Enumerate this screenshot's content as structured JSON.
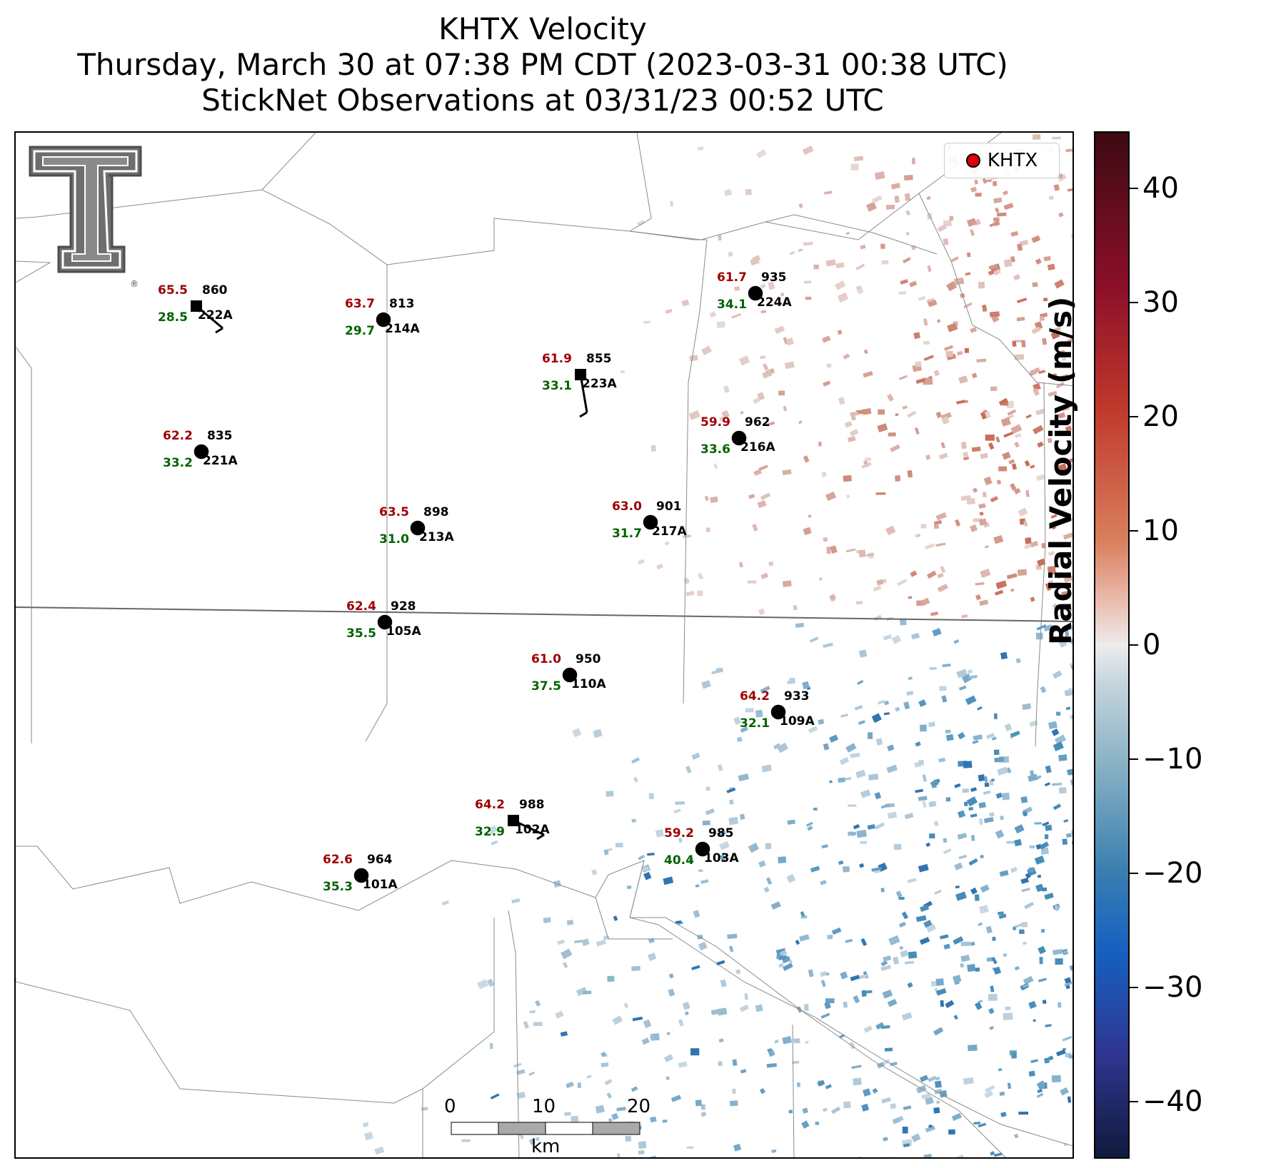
{
  "title": {
    "line1": "KHTX Velocity",
    "line2": "Thursday, March 30 at 07:38 PM CDT (2023-03-31 00:38 UTC)",
    "line3": "StickNet Observations at 03/31/23 00:52 UTC"
  },
  "legend": {
    "label": "KHTX",
    "marker_color": "#e0000a"
  },
  "logo": {
    "name": "texas-tech-double-t-logo",
    "registered_mark": "®"
  },
  "colorbar": {
    "label": "Radial Velocity (m/s)",
    "range": [
      -45,
      45
    ],
    "ticks": [
      "40",
      "30",
      "20",
      "10",
      "0",
      "−10",
      "−20",
      "−30",
      "−40"
    ],
    "tick_values": [
      40,
      30,
      20,
      10,
      0,
      -10,
      -20,
      -30,
      -40
    ],
    "colors": {
      "positive": "#c0392b",
      "zero": "#ececec",
      "negative": "#3a7fb0"
    }
  },
  "scale_bar": {
    "ticks": [
      "0",
      "10",
      "20"
    ],
    "unit": "km"
  },
  "stations": [
    {
      "id": "222A",
      "temp": "65.5",
      "dew": "28.5",
      "pres": "860",
      "marker": "square"
    },
    {
      "id": "214A",
      "temp": "63.7",
      "dew": "29.7",
      "pres": "813",
      "marker": "circle"
    },
    {
      "id": "223A",
      "temp": "61.9",
      "dew": "33.1",
      "pres": "855",
      "marker": "square"
    },
    {
      "id": "224A",
      "temp": "61.7",
      "dew": "34.1",
      "pres": "935",
      "marker": "circle"
    },
    {
      "id": "221A",
      "temp": "62.2",
      "dew": "33.2",
      "pres": "835",
      "marker": "circle"
    },
    {
      "id": "216A",
      "temp": "59.9",
      "dew": "33.6",
      "pres": "962",
      "marker": "circle"
    },
    {
      "id": "213A",
      "temp": "63.5",
      "dew": "31.0",
      "pres": "898",
      "marker": "circle"
    },
    {
      "id": "217A",
      "temp": "63.0",
      "dew": "31.7",
      "pres": "901",
      "marker": "circle"
    },
    {
      "id": "105A",
      "temp": "62.4",
      "dew": "35.5",
      "pres": "928",
      "marker": "circle"
    },
    {
      "id": "110A",
      "temp": "61.0",
      "dew": "37.5",
      "pres": "950",
      "marker": "circle"
    },
    {
      "id": "109A",
      "temp": "64.2",
      "dew": "32.1",
      "pres": "933",
      "marker": "circle"
    },
    {
      "id": "102A",
      "temp": "64.2",
      "dew": "32.9",
      "pres": "988",
      "marker": "square"
    },
    {
      "id": "103A",
      "temp": "59.2",
      "dew": "40.4",
      "pres": "985",
      "marker": "circle"
    },
    {
      "id": "101A",
      "temp": "62.6",
      "dew": "35.3",
      "pres": "964",
      "marker": "circle"
    }
  ]
}
